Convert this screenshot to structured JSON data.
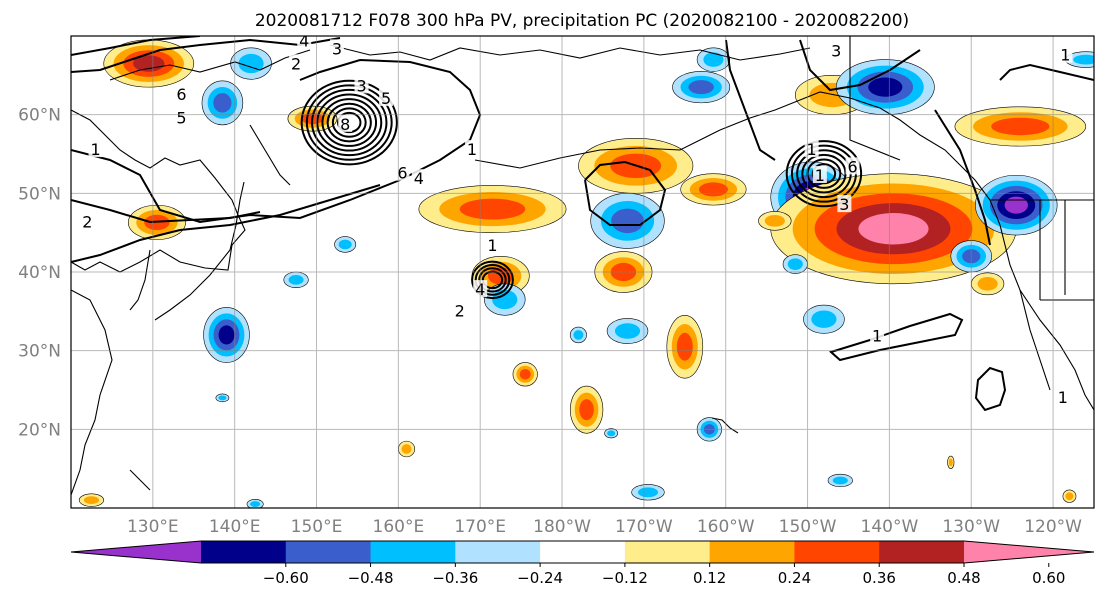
{
  "figure": {
    "title": "2020081712 F078 300 hPa PV, precipitation PC (2020082100 - 2020082200)"
  },
  "map": {
    "projection": "equirectangular",
    "lon_range": [
      120,
      245
    ],
    "lat_range": [
      10,
      70
    ],
    "gridlines": true,
    "lon_ticks": [
      {
        "lon": 130,
        "label": "130°E"
      },
      {
        "lon": 140,
        "label": "140°E"
      },
      {
        "lon": 150,
        "label": "150°E"
      },
      {
        "lon": 160,
        "label": "160°E"
      },
      {
        "lon": 170,
        "label": "170°E"
      },
      {
        "lon": 180,
        "label": "180°W"
      },
      {
        "lon": 190,
        "label": "170°W"
      },
      {
        "lon": 200,
        "label": "160°W"
      },
      {
        "lon": 210,
        "label": "150°W"
      },
      {
        "lon": 220,
        "label": "140°W"
      },
      {
        "lon": 230,
        "label": "130°W"
      },
      {
        "lon": 240,
        "label": "120°W"
      }
    ],
    "lat_ticks": [
      {
        "lat": 20,
        "label": "20°N"
      },
      {
        "lat": 30,
        "label": "30°N"
      },
      {
        "lat": 40,
        "label": "40°N"
      },
      {
        "lat": 50,
        "label": "50°N"
      },
      {
        "lat": 60,
        "label": "60°N"
      }
    ]
  },
  "colorbar": {
    "extend": "both",
    "colors": [
      "#9932cc",
      "#00008b",
      "#3a5fcd",
      "#00bfff",
      "#b0e2ff",
      "#ffffff",
      "#ffec8b",
      "#ffa500",
      "#ff4500",
      "#b22222",
      "#ff82ab"
    ],
    "tick_labels": [
      "−0.60",
      "−0.48",
      "−0.36",
      "−0.24",
      "−0.12",
      "0.12",
      "0.24",
      "0.36",
      "0.48",
      "0.60"
    ]
  },
  "pv_contour_labels": [
    {
      "text": "4",
      "lon": 148.5,
      "lat": 69.3
    },
    {
      "text": "3",
      "lon": 152.5,
      "lat": 68.3
    },
    {
      "text": "2",
      "lon": 147.5,
      "lat": 66.4
    },
    {
      "text": "6",
      "lon": 133.5,
      "lat": 62.5
    },
    {
      "text": "5",
      "lon": 133.5,
      "lat": 59.5
    },
    {
      "text": "3",
      "lon": 155.5,
      "lat": 63.6
    },
    {
      "text": "5",
      "lon": 158.5,
      "lat": 62.0
    },
    {
      "text": "8",
      "lon": 153.5,
      "lat": 58.7
    },
    {
      "text": "6",
      "lon": 160.5,
      "lat": 52.5
    },
    {
      "text": "4",
      "lon": 162.5,
      "lat": 51.8
    },
    {
      "text": "1",
      "lon": 169.0,
      "lat": 55.5
    },
    {
      "text": "1",
      "lon": 123.0,
      "lat": 55.5
    },
    {
      "text": "2",
      "lon": 122.0,
      "lat": 46.3
    },
    {
      "text": "1",
      "lon": 171.5,
      "lat": 43.3
    },
    {
      "text": "4",
      "lon": 170.0,
      "lat": 37.7
    },
    {
      "text": "2",
      "lon": 167.5,
      "lat": 35.0
    },
    {
      "text": "3",
      "lon": 213.5,
      "lat": 68.0
    },
    {
      "text": "1",
      "lon": 210.5,
      "lat": 55.5
    },
    {
      "text": "6",
      "lon": 215.5,
      "lat": 53.3
    },
    {
      "text": "1",
      "lon": 211.5,
      "lat": 52.2
    },
    {
      "text": "3",
      "lon": 214.5,
      "lat": 48.5
    },
    {
      "text": "1",
      "lon": 218.5,
      "lat": 31.8
    },
    {
      "text": "1",
      "lon": 241.2,
      "lat": 24.0
    },
    {
      "text": "1",
      "lon": 241.5,
      "lat": 67.5
    }
  ],
  "precip_pc_blobs": [
    {
      "lon": 129.5,
      "lat": 66.5,
      "rx": 5.5,
      "ry": 3.0,
      "value": 0.5
    },
    {
      "lon": 142.0,
      "lat": 66.5,
      "rx": 2.5,
      "ry": 2.0,
      "value": -0.3
    },
    {
      "lon": 138.5,
      "lat": 61.5,
      "rx": 2.5,
      "ry": 2.8,
      "value": -0.45
    },
    {
      "lon": 149.5,
      "lat": 59.5,
      "rx": 3.0,
      "ry": 1.6,
      "value": 0.4
    },
    {
      "lon": 130.5,
      "lat": 46.3,
      "rx": 3.5,
      "ry": 2.2,
      "value": 0.45
    },
    {
      "lon": 171.5,
      "lat": 48.0,
      "rx": 9.0,
      "ry": 3.0,
      "value": 0.44
    },
    {
      "lon": 198.5,
      "lat": 67.0,
      "rx": 2.0,
      "ry": 1.5,
      "value": -0.3
    },
    {
      "lon": 189.0,
      "lat": 53.5,
      "rx": 7.0,
      "ry": 3.5,
      "value": 0.46
    },
    {
      "lon": 198.5,
      "lat": 50.5,
      "rx": 4.0,
      "ry": 2.0,
      "value": 0.4
    },
    {
      "lon": 188.0,
      "lat": 46.5,
      "rx": 4.5,
      "ry": 3.5,
      "value": -0.42
    },
    {
      "lon": 187.5,
      "lat": 40.0,
      "rx": 3.5,
      "ry": 2.6,
      "value": 0.48
    },
    {
      "lon": 197.0,
      "lat": 63.5,
      "rx": 3.5,
      "ry": 2.0,
      "value": -0.4
    },
    {
      "lon": 213.0,
      "lat": 62.5,
      "rx": 4.5,
      "ry": 2.5,
      "value": 0.3
    },
    {
      "lon": 219.5,
      "lat": 63.5,
      "rx": 6.0,
      "ry": 3.5,
      "value": -0.55
    },
    {
      "lon": 236.0,
      "lat": 58.5,
      "rx": 8.0,
      "ry": 2.5,
      "value": 0.42
    },
    {
      "lon": 244.0,
      "lat": 67.0,
      "rx": 2.5,
      "ry": 1.0,
      "value": -0.3
    },
    {
      "lon": 210.5,
      "lat": 49.5,
      "rx": 5.0,
      "ry": 4.5,
      "value": -0.62
    },
    {
      "lon": 220.5,
      "lat": 45.5,
      "rx": 15.0,
      "ry": 7.0,
      "value": 0.64
    },
    {
      "lon": 235.5,
      "lat": 48.5,
      "rx": 5.0,
      "ry": 3.8,
      "value": -0.62
    },
    {
      "lon": 230.0,
      "lat": 42.0,
      "rx": 2.5,
      "ry": 2.0,
      "value": -0.4
    },
    {
      "lon": 232.0,
      "lat": 38.5,
      "rx": 2.0,
      "ry": 1.4,
      "value": 0.3
    },
    {
      "lon": 206.0,
      "lat": 46.5,
      "rx": 2.0,
      "ry": 1.2,
      "value": 0.3
    },
    {
      "lon": 147.5,
      "lat": 39.0,
      "rx": 1.5,
      "ry": 1.0,
      "value": -0.25
    },
    {
      "lon": 153.5,
      "lat": 43.5,
      "rx": 1.3,
      "ry": 1.0,
      "value": -0.25
    },
    {
      "lon": 139.0,
      "lat": 32.0,
      "rx": 2.8,
      "ry": 3.5,
      "value": -0.5
    },
    {
      "lon": 172.5,
      "lat": 39.5,
      "rx": 3.5,
      "ry": 2.5,
      "value": 0.4
    },
    {
      "lon": 173.0,
      "lat": 36.5,
      "rx": 2.5,
      "ry": 2.0,
      "value": -0.3
    },
    {
      "lon": 182.0,
      "lat": 32.0,
      "rx": 1.0,
      "ry": 1.0,
      "value": -0.25
    },
    {
      "lon": 188.0,
      "lat": 32.5,
      "rx": 2.5,
      "ry": 1.6,
      "value": -0.3
    },
    {
      "lon": 195.0,
      "lat": 30.5,
      "rx": 2.2,
      "ry": 4.0,
      "value": 0.42
    },
    {
      "lon": 175.5,
      "lat": 27.0,
      "rx": 1.5,
      "ry": 1.5,
      "value": 0.4
    },
    {
      "lon": 183.0,
      "lat": 22.5,
      "rx": 2.0,
      "ry": 3.0,
      "value": 0.4
    },
    {
      "lon": 208.5,
      "lat": 41.0,
      "rx": 1.5,
      "ry": 1.2,
      "value": -0.3
    },
    {
      "lon": 212.0,
      "lat": 34.0,
      "rx": 2.5,
      "ry": 1.8,
      "value": -0.35
    },
    {
      "lon": 198.0,
      "lat": 20.0,
      "rx": 1.5,
      "ry": 1.5,
      "value": -0.4
    },
    {
      "lon": 186.0,
      "lat": 19.5,
      "rx": 0.8,
      "ry": 0.6,
      "value": -0.25
    },
    {
      "lon": 161.0,
      "lat": 17.5,
      "rx": 1.0,
      "ry": 1.0,
      "value": 0.35
    },
    {
      "lon": 190.5,
      "lat": 12.0,
      "rx": 2.0,
      "ry": 1.0,
      "value": -0.3
    },
    {
      "lon": 214.0,
      "lat": 13.5,
      "rx": 1.5,
      "ry": 0.8,
      "value": -0.3
    },
    {
      "lon": 242.0,
      "lat": 11.5,
      "rx": 0.8,
      "ry": 0.8,
      "value": 0.3
    },
    {
      "lon": 227.5,
      "lat": 15.8,
      "rx": 0.4,
      "ry": 0.8,
      "value": 0.3
    },
    {
      "lon": 142.5,
      "lat": 10.5,
      "rx": 1.0,
      "ry": 0.6,
      "value": -0.3
    },
    {
      "lon": 138.5,
      "lat": 24.0,
      "rx": 0.8,
      "ry": 0.5,
      "value": -0.3
    },
    {
      "lon": 122.5,
      "lat": 11.0,
      "rx": 1.5,
      "ry": 0.8,
      "value": 0.3
    }
  ],
  "pv_centers": [
    {
      "lon": 154.0,
      "lat": 59.0,
      "max": 8
    },
    {
      "lon": 171.5,
      "lat": 39.0,
      "max": 4
    },
    {
      "lon": 212.0,
      "lat": 52.5,
      "max": 6
    }
  ]
}
